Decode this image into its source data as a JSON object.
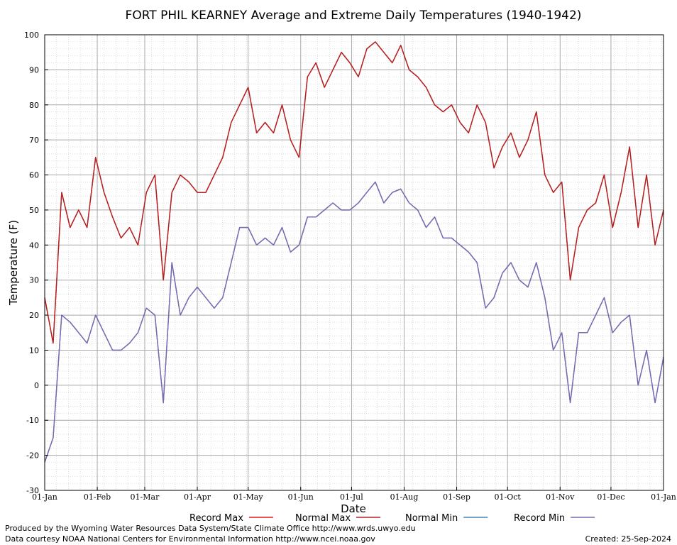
{
  "chart_data": {
    "type": "line",
    "title": "FORT PHIL KEARNEY Average and Extreme Daily Temperatures (1940-1942)",
    "xlabel": "Date",
    "ylabel": "Temperature (F)",
    "ylim": [
      -30,
      100
    ],
    "y_ticks": [
      "100",
      "90",
      "80",
      "70",
      "60",
      "50",
      "40",
      "30",
      "20",
      "10",
      "0",
      "-10",
      "-20",
      "-30"
    ],
    "x_ticks": [
      "01-Jan",
      "01-Feb",
      "01-Mar",
      "01-Apr",
      "01-May",
      "01-Jun",
      "01-Jul",
      "01-Aug",
      "01-Sep",
      "01-Oct",
      "01-Nov",
      "01-Dec",
      "01-Jan"
    ],
    "x_tick_days": [
      0,
      31,
      59,
      90,
      120,
      151,
      181,
      212,
      243,
      273,
      304,
      334,
      365
    ],
    "grid": true,
    "legend_position": "bottom",
    "series": [
      {
        "name": "Record Max",
        "color": "#e31a1c",
        "days": [
          0,
          5,
          10,
          15,
          20,
          25,
          30,
          35,
          40,
          45,
          50,
          55,
          60,
          65,
          70,
          75,
          80,
          85,
          90,
          95,
          100,
          105,
          110,
          115,
          120,
          125,
          130,
          135,
          140,
          145,
          150,
          155,
          160,
          165,
          170,
          175,
          180,
          185,
          190,
          195,
          200,
          205,
          210,
          215,
          220,
          225,
          230,
          235,
          240,
          245,
          250,
          255,
          260,
          265,
          270,
          275,
          280,
          285,
          290,
          295,
          300,
          305,
          310,
          315,
          320,
          325,
          330,
          335,
          340,
          345,
          350,
          355,
          360,
          365
        ],
        "values": [
          25,
          12,
          55,
          45,
          50,
          45,
          65,
          55,
          48,
          42,
          45,
          40,
          55,
          60,
          30,
          55,
          60,
          58,
          55,
          55,
          60,
          65,
          75,
          80,
          85,
          72,
          75,
          72,
          80,
          70,
          65,
          88,
          92,
          85,
          90,
          95,
          92,
          88,
          96,
          98,
          95,
          92,
          97,
          90,
          88,
          85,
          80,
          78,
          80,
          75,
          72,
          80,
          75,
          62,
          68,
          72,
          65,
          70,
          78,
          60,
          55,
          58,
          30,
          45,
          50,
          52,
          60,
          45,
          55,
          68,
          45,
          60,
          40,
          50
        ]
      },
      {
        "name": "Normal Max",
        "color": "#b22222",
        "days": [
          0,
          5,
          10,
          15,
          20,
          25,
          30,
          35,
          40,
          45,
          50,
          55,
          60,
          65,
          70,
          75,
          80,
          85,
          90,
          95,
          100,
          105,
          110,
          115,
          120,
          125,
          130,
          135,
          140,
          145,
          150,
          155,
          160,
          165,
          170,
          175,
          180,
          185,
          190,
          195,
          200,
          205,
          210,
          215,
          220,
          225,
          230,
          235,
          240,
          245,
          250,
          255,
          260,
          265,
          270,
          275,
          280,
          285,
          290,
          295,
          300,
          305,
          310,
          315,
          320,
          325,
          330,
          335,
          340,
          345,
          350,
          355,
          360,
          365
        ],
        "values": [
          25,
          12,
          55,
          45,
          50,
          45,
          65,
          55,
          48,
          42,
          45,
          40,
          55,
          60,
          30,
          55,
          60,
          58,
          55,
          55,
          60,
          65,
          75,
          80,
          85,
          72,
          75,
          72,
          80,
          70,
          65,
          88,
          92,
          85,
          90,
          95,
          92,
          88,
          96,
          98,
          95,
          92,
          97,
          90,
          88,
          85,
          80,
          78,
          80,
          75,
          72,
          80,
          75,
          62,
          68,
          72,
          65,
          70,
          78,
          60,
          55,
          58,
          30,
          45,
          50,
          52,
          60,
          45,
          55,
          68,
          45,
          60,
          40,
          50
        ]
      },
      {
        "name": "Normal Min",
        "color": "#4682b4",
        "days": [
          0,
          5,
          10,
          15,
          20,
          25,
          30,
          35,
          40,
          45,
          50,
          55,
          60,
          65,
          70,
          75,
          80,
          85,
          90,
          95,
          100,
          105,
          110,
          115,
          120,
          125,
          130,
          135,
          140,
          145,
          150,
          155,
          160,
          165,
          170,
          175,
          180,
          185,
          190,
          195,
          200,
          205,
          210,
          215,
          220,
          225,
          230,
          235,
          240,
          245,
          250,
          255,
          260,
          265,
          270,
          275,
          280,
          285,
          290,
          295,
          300,
          305,
          310,
          315,
          320,
          325,
          330,
          335,
          340,
          345,
          350,
          355,
          360,
          365
        ],
        "values": [
          -22,
          -15,
          20,
          18,
          15,
          12,
          20,
          15,
          10,
          10,
          12,
          15,
          22,
          20,
          -5,
          35,
          20,
          25,
          28,
          25,
          22,
          25,
          35,
          45,
          45,
          40,
          42,
          40,
          45,
          38,
          40,
          48,
          48,
          50,
          52,
          50,
          50,
          52,
          55,
          58,
          52,
          55,
          56,
          52,
          50,
          45,
          48,
          42,
          42,
          40,
          38,
          35,
          22,
          25,
          32,
          35,
          30,
          28,
          35,
          25,
          10,
          15,
          -5,
          15,
          15,
          20,
          25,
          15,
          18,
          20,
          0,
          10,
          -5,
          8
        ]
      },
      {
        "name": "Record Min",
        "color": "#7b68b0",
        "days": [
          0,
          5,
          10,
          15,
          20,
          25,
          30,
          35,
          40,
          45,
          50,
          55,
          60,
          65,
          70,
          75,
          80,
          85,
          90,
          95,
          100,
          105,
          110,
          115,
          120,
          125,
          130,
          135,
          140,
          145,
          150,
          155,
          160,
          165,
          170,
          175,
          180,
          185,
          190,
          195,
          200,
          205,
          210,
          215,
          220,
          225,
          230,
          235,
          240,
          245,
          250,
          255,
          260,
          265,
          270,
          275,
          280,
          285,
          290,
          295,
          300,
          305,
          310,
          315,
          320,
          325,
          330,
          335,
          340,
          345,
          350,
          355,
          360,
          365
        ],
        "values": [
          -22,
          -15,
          20,
          18,
          15,
          12,
          20,
          15,
          10,
          10,
          12,
          15,
          22,
          20,
          -5,
          35,
          20,
          25,
          28,
          25,
          22,
          25,
          35,
          45,
          45,
          40,
          42,
          40,
          45,
          38,
          40,
          48,
          48,
          50,
          52,
          50,
          50,
          52,
          55,
          58,
          52,
          55,
          56,
          52,
          50,
          45,
          48,
          42,
          42,
          40,
          38,
          35,
          22,
          25,
          32,
          35,
          30,
          28,
          35,
          25,
          10,
          15,
          -5,
          15,
          15,
          20,
          25,
          15,
          18,
          20,
          0,
          10,
          -5,
          8
        ]
      }
    ]
  },
  "footer": {
    "produced_by": "Produced by the Wyoming Water Resources Data System/State Climate Office http://www.wrds.uwyo.edu",
    "courtesy": "Data courtesy NOAA National Centers for Environmental Information http://www.ncei.noaa.gov",
    "created": "Created:  25-Sep-2024"
  }
}
